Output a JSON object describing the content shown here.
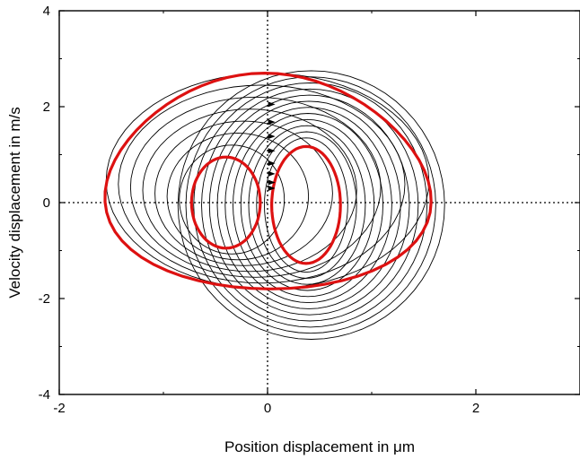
{
  "chart_data": {
    "type": "line",
    "title": "",
    "xlabel": "Position displacement in μm",
    "ylabel": "Velocity displacement in m/s",
    "xlim": [
      -2,
      3
    ],
    "ylim": [
      -4,
      4
    ],
    "x_ticks": [
      -2,
      0,
      2
    ],
    "y_ticks": [
      -4,
      -2,
      0,
      2,
      4
    ],
    "x_tick_labels": [
      "-2",
      "0",
      "2"
    ],
    "y_tick_labels": [
      "-4",
      "-2",
      "0",
      "2",
      "4"
    ],
    "grid": false,
    "legend": "none",
    "reference_lines": [
      {
        "orientation": "vertical",
        "x": 0,
        "style": "dotted"
      },
      {
        "orientation": "horizontal",
        "y": 0,
        "style": "dotted"
      }
    ],
    "colors": {
      "highlight": "#dd1111",
      "trajectory": "#000000"
    },
    "highlight_cycles": [
      {
        "cx": 0.0,
        "cy": 0.45,
        "a": 1.55,
        "b": 2.25,
        "skew": -0.18,
        "rotation": 0.1
      },
      {
        "cx": -0.4,
        "cy": 0.0,
        "a": 0.33,
        "b": 0.95
      },
      {
        "cx": 0.37,
        "cy": -0.05,
        "a": 0.33,
        "b": 1.22
      }
    ],
    "trajectory_families": [
      {
        "from": {
          "cx": -0.4,
          "cy": 0.0,
          "a": 0.33,
          "b": 0.95
        },
        "to": {
          "cx": 0.0,
          "cy": 0.45,
          "a": 1.55,
          "b": 2.25
        },
        "count": 8
      },
      {
        "from": {
          "cx": 0.37,
          "cy": -0.05,
          "a": 0.4,
          "b": 1.4
        },
        "to": {
          "cx": 0.42,
          "cy": -0.05,
          "a": 1.28,
          "b": 2.8
        },
        "count": 12
      }
    ],
    "arrows": [
      {
        "x": 0.04,
        "y": 2.05
      },
      {
        "x": 0.04,
        "y": 1.68
      },
      {
        "x": 0.04,
        "y": 1.38
      },
      {
        "x": 0.04,
        "y": 1.08
      },
      {
        "x": 0.04,
        "y": 0.82
      },
      {
        "x": 0.04,
        "y": 0.6
      },
      {
        "x": 0.04,
        "y": 0.42
      },
      {
        "x": 0.04,
        "y": 0.3
      }
    ]
  }
}
